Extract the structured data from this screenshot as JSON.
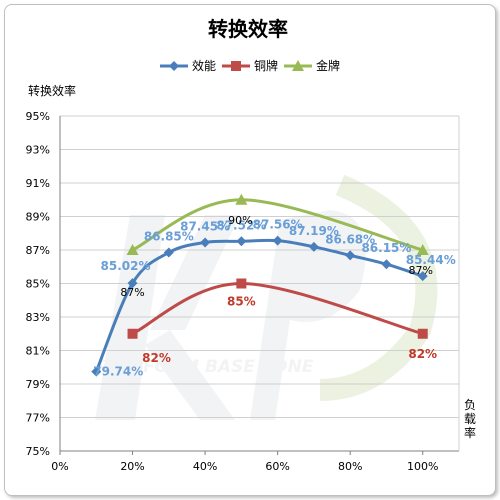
{
  "chart_data": {
    "type": "line",
    "title": "转换效率",
    "ylabel": "转换效率",
    "xlabel": "负载率",
    "x_ticks": [
      "0%",
      "20%",
      "40%",
      "60%",
      "80%",
      "100%"
    ],
    "y_ticks": [
      "75%",
      "77%",
      "79%",
      "81%",
      "83%",
      "85%",
      "87%",
      "89%",
      "91%",
      "93%",
      "95%"
    ],
    "xlim": [
      0,
      110
    ],
    "ylim": [
      75,
      95
    ],
    "grid": "horizontal",
    "legend_position": "top",
    "watermark": "PLATFORM BASE ZONE",
    "series": [
      {
        "name": "效能",
        "color": "#4a7ebb",
        "marker": "diamond",
        "x": [
          10,
          20,
          30,
          40,
          50,
          60,
          70,
          80,
          90,
          100
        ],
        "y": [
          79.74,
          85.02,
          86.85,
          87.45,
          87.52,
          87.56,
          87.19,
          86.68,
          86.15,
          85.44
        ],
        "labels": [
          "79.74%",
          "85.02%",
          "86.85%",
          "87.45%",
          "87.52%",
          "87.56%",
          "87.19%",
          "86.68%",
          "86.15%",
          "85.44%"
        ]
      },
      {
        "name": "铜牌",
        "color": "#be4b48",
        "marker": "square",
        "x": [
          20,
          50,
          100
        ],
        "y": [
          82,
          85,
          82
        ],
        "labels": [
          "82%",
          "85%",
          "82%"
        ]
      },
      {
        "name": "金牌",
        "color": "#98b954",
        "marker": "triangle",
        "x": [
          20,
          50,
          100
        ],
        "y": [
          87,
          90,
          87
        ],
        "labels": [
          "87%",
          "90%",
          "87%"
        ]
      }
    ]
  }
}
